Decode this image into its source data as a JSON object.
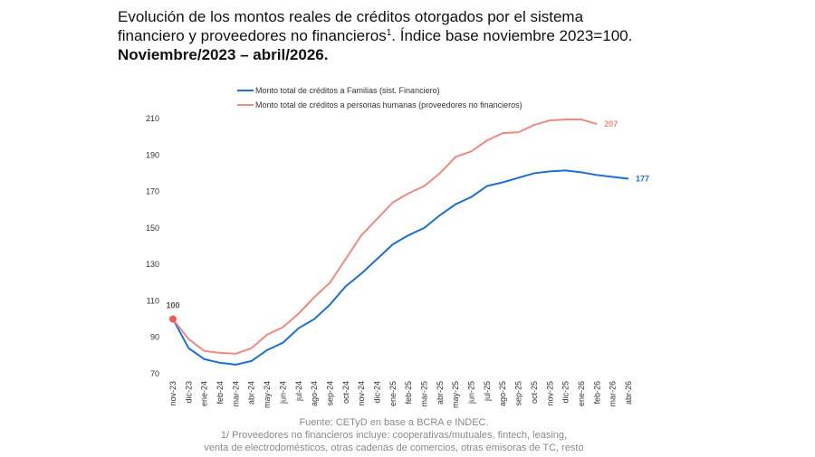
{
  "chart_data": {
    "type": "line",
    "title": "Evolución de los montos reales de créditos otorgados por el sistema",
    "title_line2": "financiero y proveedores no financieros",
    "title_note": "1",
    "title_rest": ". Índice base noviembre 2023=100.",
    "subtitle": "Noviembre/2023 – abril/2026.",
    "categories": [
      "nov-23",
      "dic-23",
      "ene-24",
      "feb-24",
      "mar-24",
      "abr-24",
      "may-24",
      "jun-24",
      "jul-24",
      "ago-24",
      "sep-24",
      "oct-24",
      "nov-24",
      "dic-24",
      "ene-25",
      "feb-25",
      "mar-25",
      "abr-25",
      "may-25",
      "jun-25",
      "jul-25",
      "ago-25",
      "sep-25",
      "oct-25",
      "nov-25",
      "dic-25",
      "ene-26",
      "feb-26",
      "mar-26",
      "abr-26"
    ],
    "series": [
      {
        "name": "Monto total de créditos a Familias (sist. Financiero)",
        "color": "#1a6fd6",
        "values": [
          100,
          84,
          78,
          76,
          75,
          77,
          83,
          87,
          95,
          100,
          108,
          118,
          125,
          133,
          141,
          146,
          150,
          157,
          163,
          167,
          173,
          175,
          177.5,
          180,
          181,
          181.5,
          180.5,
          179,
          178,
          177
        ]
      },
      {
        "name": "Monto total de créditos a personas humanas (proveedores no financieros)",
        "color": "#f08a80",
        "values": [
          100,
          89,
          82.5,
          81.5,
          81,
          84,
          91.5,
          95.5,
          103,
          112,
          120,
          133,
          146,
          155,
          164,
          169,
          173,
          180,
          189,
          192,
          198,
          202,
          202.5,
          206.5,
          209,
          209.5,
          209.5,
          207,
          null,
          null
        ]
      }
    ],
    "ylim": [
      70,
      210
    ],
    "yticks": [
      70,
      90,
      110,
      130,
      150,
      170,
      190,
      210
    ],
    "grid": false,
    "footnotes": [
      "Fuente: CETyD en base a BCRA e INDEC.",
      "1/ Proveedores no financieros incluye: cooperativas/mutuales, fintech, leasing,",
      "venta de electrodomésticos, otras cadenas de comercios, otras emisoras de TC, resto"
    ]
  }
}
